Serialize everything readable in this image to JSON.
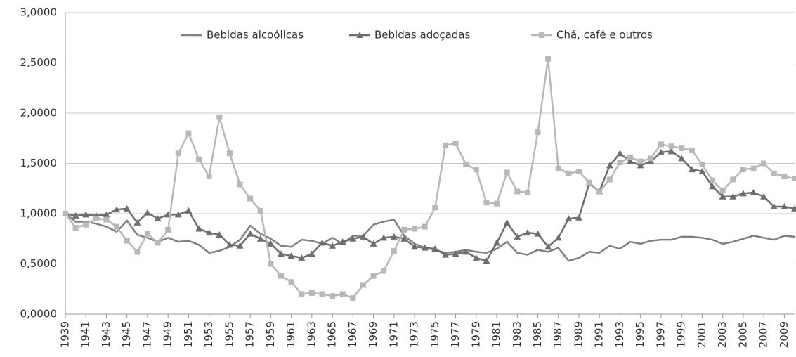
{
  "chart_data": {
    "type": "line",
    "x": [
      1939,
      1940,
      1941,
      1942,
      1943,
      1944,
      1945,
      1946,
      1947,
      1948,
      1949,
      1950,
      1951,
      1952,
      1953,
      1954,
      1955,
      1956,
      1957,
      1958,
      1959,
      1960,
      1961,
      1962,
      1963,
      1964,
      1965,
      1966,
      1967,
      1968,
      1969,
      1970,
      1971,
      1972,
      1973,
      1974,
      1975,
      1976,
      1977,
      1978,
      1979,
      1980,
      1981,
      1982,
      1983,
      1984,
      1985,
      1986,
      1987,
      1988,
      1989,
      1990,
      1991,
      1992,
      1993,
      1994,
      1995,
      1996,
      1997,
      1998,
      1999,
      2000,
      2001,
      2002,
      2003,
      2004,
      2005,
      2006,
      2007,
      2008,
      2009,
      2010
    ],
    "series": [
      {
        "name": "Bebidas alcoólicas",
        "color": "#808080",
        "marker": "none",
        "values": [
          1.0,
          0.92,
          0.92,
          0.9,
          0.87,
          0.82,
          0.93,
          0.79,
          0.76,
          0.72,
          0.76,
          0.72,
          0.73,
          0.69,
          0.61,
          0.63,
          0.67,
          0.74,
          0.88,
          0.8,
          0.75,
          0.68,
          0.67,
          0.74,
          0.73,
          0.7,
          0.76,
          0.7,
          0.78,
          0.78,
          0.89,
          0.92,
          0.94,
          0.78,
          0.7,
          0.66,
          0.64,
          0.61,
          0.62,
          0.64,
          0.62,
          0.61,
          0.65,
          0.72,
          0.61,
          0.59,
          0.64,
          0.62,
          0.66,
          0.53,
          0.56,
          0.62,
          0.61,
          0.68,
          0.65,
          0.72,
          0.7,
          0.73,
          0.74,
          0.74,
          0.77,
          0.77,
          0.76,
          0.74,
          0.7,
          0.72,
          0.75,
          0.78,
          0.76,
          0.74,
          0.78,
          0.77
        ]
      },
      {
        "name": "Bebidas adoçadas",
        "color": "#6e6e6e",
        "marker": "triangle",
        "values": [
          1.0,
          0.98,
          0.99,
          0.98,
          0.99,
          1.04,
          1.05,
          0.91,
          1.01,
          0.95,
          0.99,
          0.99,
          1.03,
          0.85,
          0.81,
          0.79,
          0.69,
          0.68,
          0.8,
          0.75,
          0.7,
          0.6,
          0.58,
          0.56,
          0.6,
          0.71,
          0.68,
          0.72,
          0.75,
          0.77,
          0.7,
          0.76,
          0.77,
          0.75,
          0.67,
          0.66,
          0.65,
          0.59,
          0.6,
          0.62,
          0.56,
          0.53,
          0.71,
          0.91,
          0.77,
          0.81,
          0.8,
          0.67,
          0.76,
          0.95,
          0.96,
          1.3,
          1.22,
          1.48,
          1.6,
          1.52,
          1.48,
          1.52,
          1.61,
          1.62,
          1.55,
          1.44,
          1.42,
          1.27,
          1.17,
          1.17,
          1.2,
          1.21,
          1.17,
          1.07,
          1.07,
          1.05
        ]
      },
      {
        "name": "Chá, café e outros",
        "color": "#b8b8b8",
        "marker": "square",
        "values": [
          1.0,
          0.86,
          0.89,
          0.95,
          0.94,
          0.87,
          0.73,
          0.62,
          0.8,
          0.71,
          0.84,
          1.6,
          1.8,
          1.54,
          1.37,
          1.96,
          1.6,
          1.29,
          1.15,
          1.03,
          0.5,
          0.38,
          0.32,
          0.2,
          0.21,
          0.2,
          0.18,
          0.2,
          0.16,
          0.29,
          0.38,
          0.43,
          0.63,
          0.84,
          0.85,
          0.87,
          1.06,
          1.68,
          1.7,
          1.49,
          1.44,
          1.11,
          1.1,
          1.41,
          1.22,
          1.21,
          1.81,
          2.54,
          1.45,
          1.4,
          1.42,
          1.31,
          1.22,
          1.34,
          1.51,
          1.56,
          1.52,
          1.55,
          1.69,
          1.67,
          1.65,
          1.63,
          1.49,
          1.33,
          1.23,
          1.34,
          1.44,
          1.45,
          1.5,
          1.4,
          1.37,
          1.35
        ]
      }
    ],
    "xlim": [
      1939,
      2010
    ],
    "xticks": [
      1939,
      1941,
      1943,
      1945,
      1947,
      1949,
      1951,
      1953,
      1955,
      1957,
      1959,
      1961,
      1963,
      1965,
      1967,
      1969,
      1971,
      1973,
      1975,
      1977,
      1979,
      1981,
      1983,
      1985,
      1987,
      1989,
      1991,
      1993,
      1995,
      1997,
      1999,
      2001,
      2003,
      2005,
      2007,
      2009
    ],
    "ylim": [
      0,
      3
    ],
    "yticks": [
      {
        "value": 0,
        "label": "0,0000"
      },
      {
        "value": 0.5,
        "label": "0,5000"
      },
      {
        "value": 1,
        "label": "1,0000"
      },
      {
        "value": 1.5,
        "label": "1,5000"
      },
      {
        "value": 2,
        "label": "2,0000"
      },
      {
        "value": 2.5,
        "label": "2,5000"
      },
      {
        "value": 3,
        "label": "3,0000"
      }
    ],
    "grid": true,
    "legend": "top"
  }
}
